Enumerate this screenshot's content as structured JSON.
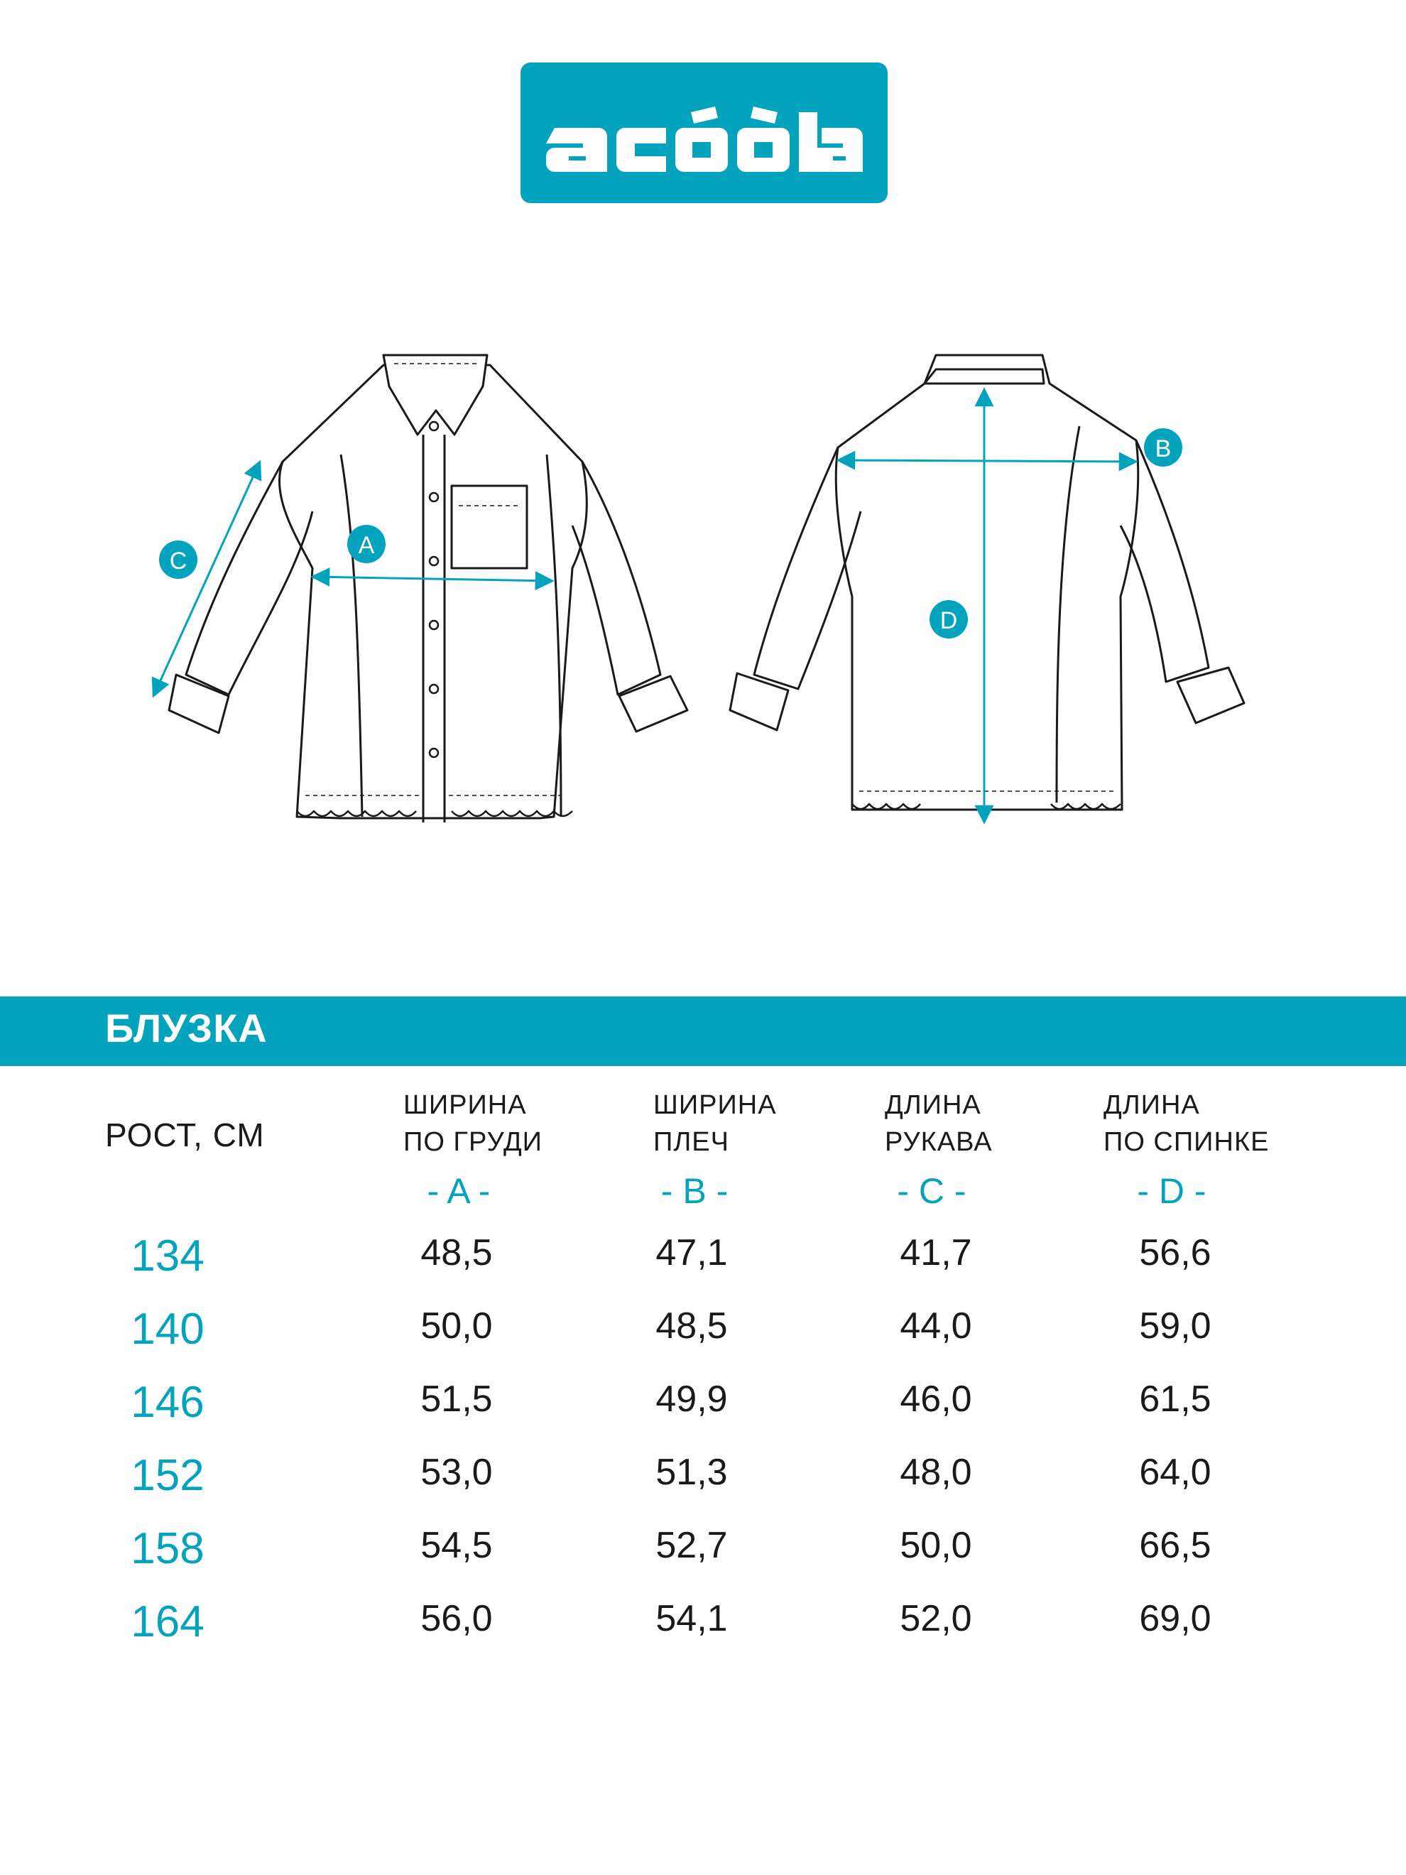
{
  "brand": {
    "logo_text": "acoola"
  },
  "product": {
    "title": "БЛУЗКА"
  },
  "markers": [
    "A",
    "B",
    "C",
    "D"
  ],
  "table": {
    "row_header": "РОСТ, СМ",
    "columns": [
      {
        "line1": "ШИРИНА",
        "line2": "ПО ГРУДИ",
        "code": "- A -"
      },
      {
        "line1": "ШИРИНА",
        "line2": "ПЛЕЧ",
        "code": "- B -"
      },
      {
        "line1": "ДЛИНА",
        "line2": "РУКАВА",
        "code": "- C -"
      },
      {
        "line1": "ДЛИНА",
        "line2": "ПО СПИНКЕ",
        "code": "- D -"
      }
    ],
    "rows": [
      {
        "height": "134",
        "values": [
          "48,5",
          "47,1",
          "41,7",
          "56,6"
        ]
      },
      {
        "height": "140",
        "values": [
          "50,0",
          "48,5",
          "44,0",
          "59,0"
        ]
      },
      {
        "height": "146",
        "values": [
          "51,5",
          "49,9",
          "46,0",
          "61,5"
        ]
      },
      {
        "height": "152",
        "values": [
          "53,0",
          "51,3",
          "48,0",
          "64,0"
        ]
      },
      {
        "height": "158",
        "values": [
          "54,5",
          "52,7",
          "50,0",
          "66,5"
        ]
      },
      {
        "height": "164",
        "values": [
          "56,0",
          "54,1",
          "52,0",
          "69,0"
        ]
      }
    ]
  },
  "colors": {
    "accent": "#04a3bd",
    "text": "#1a1a1a",
    "background": "#ffffff"
  }
}
